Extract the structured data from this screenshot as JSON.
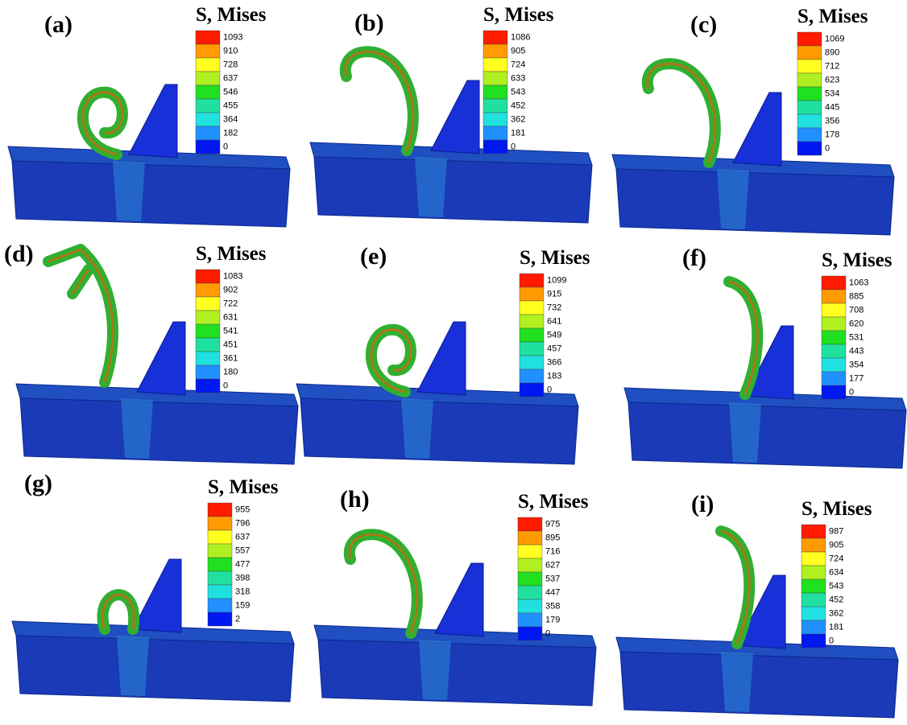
{
  "panels": [
    {
      "label": "(a)",
      "legend_title": "S, Mises",
      "legend_values": [
        1093,
        910,
        728,
        637,
        546,
        455,
        364,
        182,
        0
      ]
    },
    {
      "label": "(b)",
      "legend_title": "S, Mises",
      "legend_values": [
        1086,
        905,
        724,
        633,
        543,
        452,
        362,
        181,
        0
      ]
    },
    {
      "label": "(c)",
      "legend_title": "S, Mises",
      "legend_values": [
        1069,
        890,
        712,
        623,
        534,
        445,
        356,
        178,
        0
      ]
    },
    {
      "label": "(d)",
      "legend_title": "S, Mises",
      "legend_values": [
        1083,
        902,
        722,
        631,
        541,
        451,
        361,
        180,
        0
      ]
    },
    {
      "label": "(e)",
      "legend_title": "S, Mises",
      "legend_values": [
        1099,
        915,
        732,
        641,
        549,
        457,
        366,
        183,
        0
      ]
    },
    {
      "label": "(f)",
      "legend_title": "S, Mises",
      "legend_values": [
        1063,
        885,
        708,
        620,
        531,
        443,
        354,
        177,
        0
      ]
    },
    {
      "label": "(g)",
      "legend_title": "S, Mises",
      "legend_values": [
        955,
        796,
        637,
        557,
        477,
        398,
        318,
        159,
        2
      ]
    },
    {
      "label": "(h)",
      "legend_title": "S, Mises",
      "legend_values": [
        975,
        895,
        716,
        627,
        537,
        447,
        358,
        179,
        0
      ]
    },
    {
      "label": "(i)",
      "legend_title": "S, Mises",
      "legend_values": [
        987,
        905,
        724,
        634,
        543,
        452,
        362,
        181,
        0
      ]
    }
  ]
}
